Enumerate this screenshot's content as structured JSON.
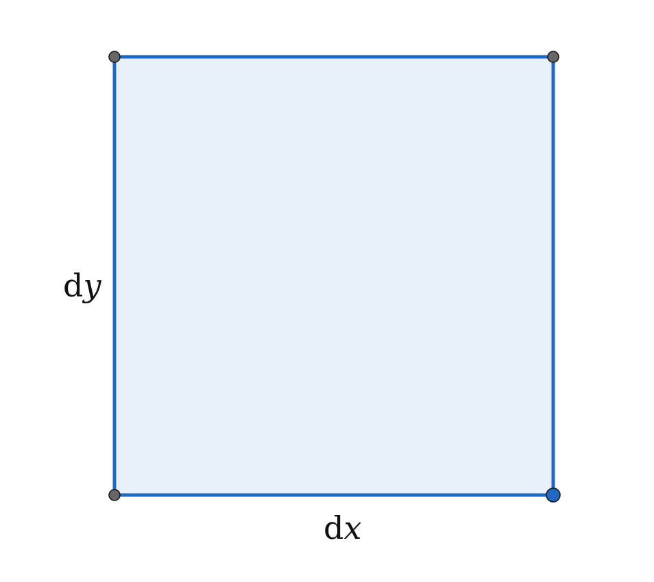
{
  "diagram": {
    "shape": "square",
    "fill_color": "#e8f0fa",
    "stroke_color": "#1f69c1",
    "vertex_color": "#666666",
    "highlight_vertex_color": "#1f69c1",
    "highlighted_vertex": "bottom-right",
    "labels": {
      "bottom": {
        "d": "d",
        "var": "x"
      },
      "left": {
        "d": "d",
        "var": "y"
      }
    }
  }
}
